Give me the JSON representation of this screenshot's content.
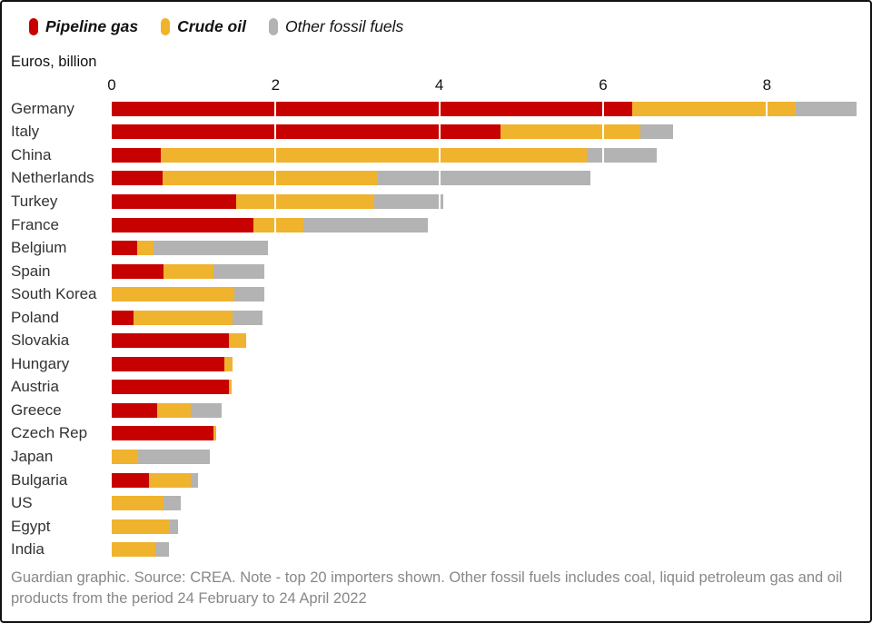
{
  "legend": {
    "items": [
      {
        "label": "Pipeline gas",
        "color": "#c70000",
        "bold": true
      },
      {
        "label": "Crude oil",
        "color": "#f0b32e",
        "bold": true
      },
      {
        "label": "Other fossil fuels",
        "color": "#b3b3b4",
        "bold": false
      }
    ]
  },
  "axis": {
    "unit_label": "Euros, billion",
    "ticks": [
      0,
      2,
      4,
      6,
      8
    ]
  },
  "chart_data": {
    "type": "bar",
    "orientation": "horizontal",
    "stacked": true,
    "title": "",
    "xlabel": "Euros, billion",
    "xlim": [
      0,
      9.15
    ],
    "grid": "white vertical gridlines over bars at ticks 2,4,6,8",
    "legend_position": "top-left",
    "categories": [
      "Germany",
      "Italy",
      "China",
      "Netherlands",
      "Turkey",
      "France",
      "Belgium",
      "Spain",
      "South Korea",
      "Poland",
      "Slovakia",
      "Hungary",
      "Austria",
      "Greece",
      "Czech Rep",
      "Japan",
      "Bulgaria",
      "US",
      "Egypt",
      "India"
    ],
    "series": [
      {
        "name": "Pipeline gas",
        "color": "#c70000",
        "values": [
          6.35,
          4.75,
          0.6,
          0.62,
          1.52,
          1.73,
          0.31,
          0.63,
          0,
          0.27,
          1.43,
          1.37,
          1.43,
          0.56,
          1.24,
          0,
          0.46,
          0,
          0,
          0
        ]
      },
      {
        "name": "Crude oil",
        "color": "#f0b32e",
        "values": [
          2.0,
          1.7,
          5.2,
          2.63,
          1.69,
          0.61,
          0.2,
          0.61,
          1.5,
          1.2,
          0.21,
          0.1,
          0.03,
          0.4,
          0.03,
          0.32,
          0.51,
          0.63,
          0.71,
          0.53
        ]
      },
      {
        "name": "Other fossil fuels",
        "color": "#b3b3b4",
        "values": [
          0.75,
          0.4,
          0.85,
          2.6,
          0.84,
          1.52,
          1.4,
          0.62,
          0.36,
          0.37,
          0,
          0,
          0,
          0.38,
          0,
          0.88,
          0.08,
          0.21,
          0.1,
          0.17
        ]
      }
    ],
    "totals": [
      9.1,
      6.85,
      6.65,
      5.85,
      4.05,
      3.86,
      1.91,
      1.86,
      1.86,
      1.84,
      1.64,
      1.47,
      1.46,
      1.34,
      1.27,
      1.2,
      1.05,
      0.84,
      0.81,
      0.7
    ]
  },
  "footer": {
    "text": "Guardian graphic. Source: CREA. Note - top 20 importers shown. Other fossil fuels includes coal, liquid petroleum gas and oil products from the period 24 February to 24 April 2022"
  }
}
